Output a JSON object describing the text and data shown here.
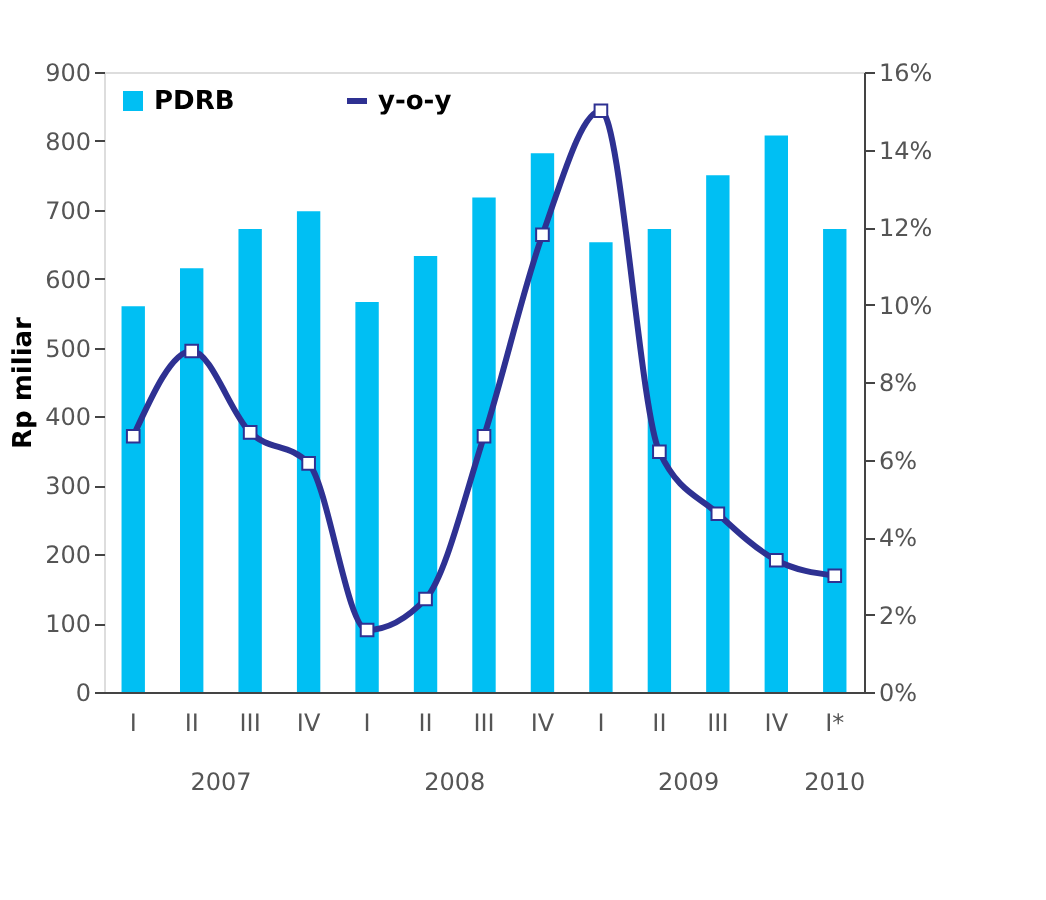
{
  "chart_data": {
    "type": "bar",
    "ylabel": "Rp miliar",
    "categories": [
      "I",
      "II",
      "III",
      "IV",
      "I",
      "II",
      "III",
      "IV",
      "I",
      "II",
      "III",
      "IV",
      "I*"
    ],
    "series": [
      {
        "name": "PDRB",
        "color": "#00bff3",
        "values": [
          560,
          615,
          672,
          698,
          566,
          633,
          718,
          782,
          653,
          672,
          750,
          808,
          672
        ]
      },
      {
        "name": "y-o-y",
        "type": "line",
        "axis": "y2",
        "color": "#2e3192",
        "marker": "square",
        "values": [
          6.6,
          8.8,
          6.7,
          5.9,
          1.6,
          2.4,
          6.6,
          11.8,
          15.0,
          6.2,
          4.6,
          3.4,
          3.0
        ]
      }
    ],
    "ylim": [
      0,
      900
    ],
    "yticks": [
      0,
      100,
      200,
      300,
      400,
      500,
      600,
      700,
      800,
      900
    ],
    "y2lim": [
      0,
      16
    ],
    "y2ticks": [
      {
        "value": 0,
        "label": "0%"
      },
      {
        "value": 2,
        "label": "2%"
      },
      {
        "value": 4,
        "label": "4%"
      },
      {
        "value": 6,
        "label": "6%"
      },
      {
        "value": 8,
        "label": "8%"
      },
      {
        "value": 10,
        "label": "10%"
      },
      {
        "value": 12,
        "label": "12%"
      },
      {
        "value": 14,
        "label": "14%"
      },
      {
        "value": 16,
        "label": "16%"
      }
    ],
    "annotations": [
      "2007",
      "2008",
      "2009",
      "2010"
    ],
    "legend": "top left",
    "grid": false
  }
}
